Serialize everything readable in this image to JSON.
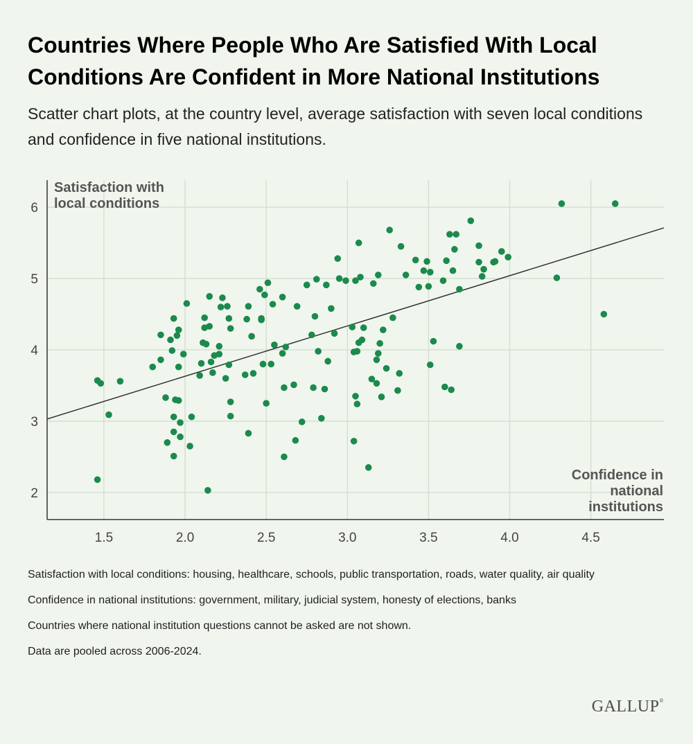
{
  "title": "Countries Where People Who Are Satisfied With Local Conditions Are Confident in More National Institutions",
  "subtitle": "Scatter chart plots, at the country level, average satisfaction with seven local conditions and confidence in five national institutions.",
  "notes": [
    "Satisfaction with local conditions: housing, healthcare, schools, public transportation, roads, water quality, air quality",
    "Confidence in national institutions: government, military, judicial system, honesty of elections, banks",
    "Countries where national institution questions cannot be asked are not shown.",
    "Data are pooled across 2006-2024."
  ],
  "logo": "GALLUP",
  "colors": {
    "point": "#1b8a4c",
    "trendline": "#333333",
    "grid": "#d6dfd3",
    "axis": "#333333",
    "background": "#f0f6ee"
  },
  "chart_data": {
    "type": "scatter",
    "ylabel_lines": [
      "Satisfaction with",
      "local conditions"
    ],
    "xlabel_lines": [
      "Confidence in",
      "national",
      "institutions"
    ],
    "xlim": [
      1.15,
      4.95
    ],
    "ylim": [
      1.62,
      6.38
    ],
    "xticks": [
      {
        "value": 1.5,
        "label": "1.5"
      },
      {
        "value": 2.0,
        "label": "2.0"
      },
      {
        "value": 2.5,
        "label": "2.5"
      },
      {
        "value": 3.0,
        "label": "3.0"
      },
      {
        "value": 3.5,
        "label": "3.5"
      },
      {
        "value": 4.0,
        "label": "4.0"
      },
      {
        "value": 4.5,
        "label": "4.5"
      }
    ],
    "yticks": [
      {
        "value": 2,
        "label": "2"
      },
      {
        "value": 3,
        "label": "3"
      },
      {
        "value": 4,
        "label": "4"
      },
      {
        "value": 5,
        "label": "5"
      },
      {
        "value": 6,
        "label": "6"
      }
    ],
    "grid": true,
    "trendline": {
      "x": [
        1.15,
        4.95
      ],
      "y": [
        3.03,
        5.71
      ]
    },
    "points": [
      [
        1.46,
        2.18
      ],
      [
        1.46,
        3.57
      ],
      [
        1.48,
        3.53
      ],
      [
        1.53,
        3.09
      ],
      [
        1.6,
        3.56
      ],
      [
        1.8,
        3.76
      ],
      [
        1.85,
        4.21
      ],
      [
        1.85,
        3.86
      ],
      [
        1.88,
        3.33
      ],
      [
        1.89,
        2.7
      ],
      [
        1.91,
        4.14
      ],
      [
        1.92,
        3.99
      ],
      [
        1.93,
        4.44
      ],
      [
        1.93,
        3.06
      ],
      [
        1.93,
        2.85
      ],
      [
        1.93,
        2.51
      ],
      [
        1.94,
        3.3
      ],
      [
        1.95,
        4.2
      ],
      [
        1.96,
        3.29
      ],
      [
        1.96,
        3.76
      ],
      [
        1.96,
        4.28
      ],
      [
        1.97,
        2.98
      ],
      [
        1.97,
        2.78
      ],
      [
        1.99,
        3.94
      ],
      [
        2.01,
        4.65
      ],
      [
        2.03,
        2.65
      ],
      [
        2.04,
        3.06
      ],
      [
        2.09,
        3.64
      ],
      [
        2.1,
        3.81
      ],
      [
        2.11,
        4.1
      ],
      [
        2.12,
        4.45
      ],
      [
        2.12,
        4.31
      ],
      [
        2.13,
        4.08
      ],
      [
        2.14,
        2.03
      ],
      [
        2.15,
        4.75
      ],
      [
        2.15,
        4.33
      ],
      [
        2.16,
        3.83
      ],
      [
        2.17,
        3.68
      ],
      [
        2.18,
        3.92
      ],
      [
        2.21,
        3.94
      ],
      [
        2.21,
        4.05
      ],
      [
        2.22,
        4.6
      ],
      [
        2.23,
        4.73
      ],
      [
        2.25,
        3.6
      ],
      [
        2.26,
        4.61
      ],
      [
        2.27,
        4.44
      ],
      [
        2.27,
        3.79
      ],
      [
        2.28,
        3.27
      ],
      [
        2.28,
        3.07
      ],
      [
        2.28,
        4.3
      ],
      [
        2.37,
        3.65
      ],
      [
        2.38,
        4.43
      ],
      [
        2.39,
        4.61
      ],
      [
        2.39,
        2.83
      ],
      [
        2.41,
        4.19
      ],
      [
        2.42,
        3.67
      ],
      [
        2.46,
        4.85
      ],
      [
        2.47,
        4.44
      ],
      [
        2.47,
        4.42
      ],
      [
        2.48,
        3.8
      ],
      [
        2.49,
        4.77
      ],
      [
        2.5,
        3.25
      ],
      [
        2.51,
        4.94
      ],
      [
        2.53,
        3.8
      ],
      [
        2.54,
        4.64
      ],
      [
        2.55,
        4.07
      ],
      [
        2.6,
        3.95
      ],
      [
        2.6,
        4.74
      ],
      [
        2.61,
        2.5
      ],
      [
        2.61,
        3.47
      ],
      [
        2.62,
        4.04
      ],
      [
        2.67,
        3.51
      ],
      [
        2.68,
        2.73
      ],
      [
        2.69,
        4.61
      ],
      [
        2.72,
        2.99
      ],
      [
        2.75,
        4.91
      ],
      [
        2.78,
        4.21
      ],
      [
        2.79,
        3.47
      ],
      [
        2.8,
        4.47
      ],
      [
        2.81,
        4.99
      ],
      [
        2.82,
        3.98
      ],
      [
        2.84,
        3.04
      ],
      [
        2.86,
        3.45
      ],
      [
        2.87,
        4.91
      ],
      [
        2.88,
        3.84
      ],
      [
        2.9,
        4.58
      ],
      [
        2.92,
        4.23
      ],
      [
        2.94,
        5.28
      ],
      [
        2.95,
        5.0
      ],
      [
        2.99,
        4.97
      ],
      [
        3.03,
        4.32
      ],
      [
        3.04,
        3.97
      ],
      [
        3.04,
        2.72
      ],
      [
        3.05,
        4.97
      ],
      [
        3.05,
        3.35
      ],
      [
        3.06,
        3.98
      ],
      [
        3.06,
        3.24
      ],
      [
        3.07,
        4.1
      ],
      [
        3.07,
        5.5
      ],
      [
        3.08,
        5.02
      ],
      [
        3.09,
        4.14
      ],
      [
        3.1,
        4.31
      ],
      [
        3.13,
        2.35
      ],
      [
        3.15,
        3.59
      ],
      [
        3.16,
        4.93
      ],
      [
        3.18,
        3.53
      ],
      [
        3.18,
        3.86
      ],
      [
        3.19,
        5.05
      ],
      [
        3.19,
        3.95
      ],
      [
        3.2,
        4.09
      ],
      [
        3.21,
        3.34
      ],
      [
        3.22,
        4.28
      ],
      [
        3.24,
        3.74
      ],
      [
        3.26,
        5.68
      ],
      [
        3.28,
        4.45
      ],
      [
        3.31,
        3.43
      ],
      [
        3.32,
        3.67
      ],
      [
        3.33,
        5.45
      ],
      [
        3.36,
        5.05
      ],
      [
        3.42,
        5.26
      ],
      [
        3.44,
        4.88
      ],
      [
        3.47,
        5.11
      ],
      [
        3.49,
        5.24
      ],
      [
        3.5,
        4.89
      ],
      [
        3.51,
        5.09
      ],
      [
        3.51,
        3.79
      ],
      [
        3.53,
        4.12
      ],
      [
        3.59,
        4.97
      ],
      [
        3.6,
        3.48
      ],
      [
        3.61,
        5.25
      ],
      [
        3.63,
        5.62
      ],
      [
        3.64,
        3.44
      ],
      [
        3.65,
        5.11
      ],
      [
        3.66,
        5.41
      ],
      [
        3.67,
        5.62
      ],
      [
        3.69,
        4.85
      ],
      [
        3.69,
        4.05
      ],
      [
        3.76,
        5.81
      ],
      [
        3.81,
        5.23
      ],
      [
        3.81,
        5.46
      ],
      [
        3.83,
        5.03
      ],
      [
        3.84,
        5.13
      ],
      [
        3.9,
        5.23
      ],
      [
        3.91,
        5.24
      ],
      [
        3.95,
        5.38
      ],
      [
        3.99,
        5.3
      ],
      [
        4.29,
        5.01
      ],
      [
        4.32,
        6.05
      ],
      [
        4.58,
        4.5
      ],
      [
        4.65,
        6.05
      ]
    ]
  }
}
